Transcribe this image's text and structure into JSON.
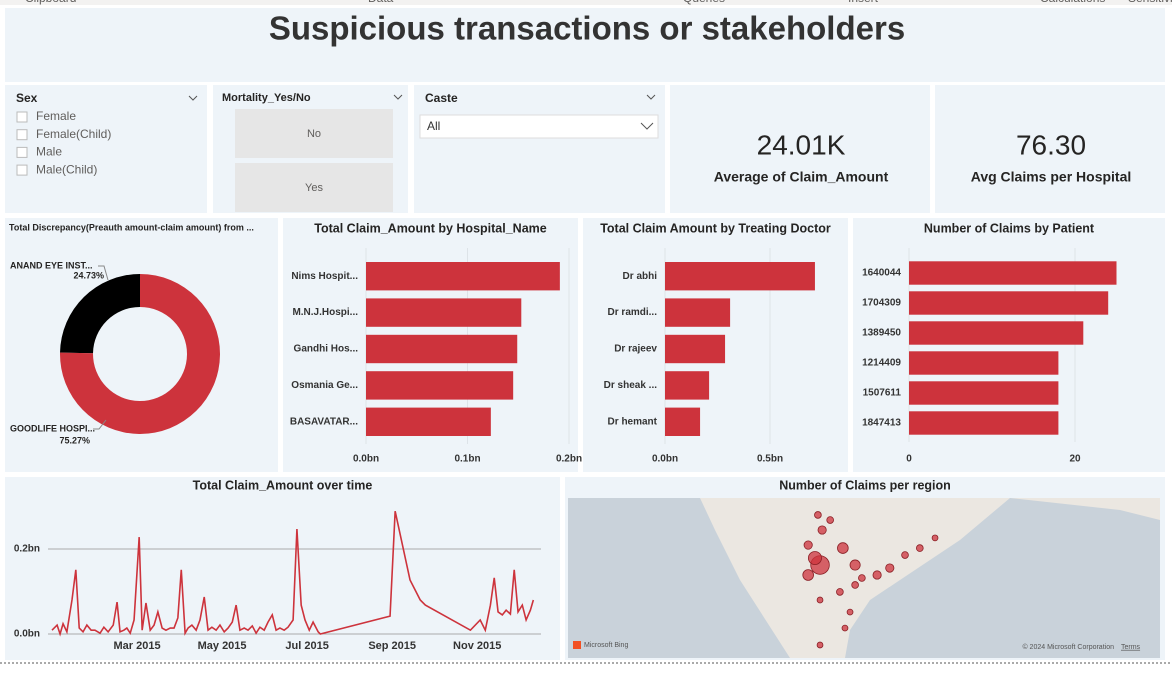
{
  "ribbon": [
    "Clipboard",
    "Data",
    "Queries",
    "Insert",
    "Calculations",
    "Sensitivity"
  ],
  "title": "Suspicious transactions or stakeholders",
  "slicers": [
    {
      "title": "Sex",
      "options": [
        "Female",
        "Female(Child)",
        "Male",
        "Male(Child)"
      ]
    },
    {
      "title": "Mortality_Yes/No",
      "options": [
        "No",
        "Yes"
      ]
    },
    {
      "title": "Caste",
      "selected": "All"
    }
  ],
  "cards": [
    {
      "value": "24.01K",
      "label": "Average of Claim_Amount"
    },
    {
      "value": "76.30",
      "label": "Avg Claims per Hospital"
    }
  ],
  "chart_data": [
    {
      "type": "pie",
      "title": "Total Discrepancy(Preauth amount-claim amount) from ...",
      "categories": [
        "ANAND EYE INST...",
        "GOODLIFE HOSPI..."
      ],
      "values": [
        24.73,
        75.27
      ],
      "value_labels": [
        "24.73%",
        "75.27%"
      ],
      "colors": [
        "#000000",
        "#cd333c"
      ]
    },
    {
      "type": "bar",
      "title": "Total Claim_Amount by Hospital_Name",
      "categories": [
        "Nims Hospit...",
        "M.N.J.Hospi...",
        "Gandhi Hos...",
        "Osmania Ge...",
        "BASAVATAR..."
      ],
      "values": [
        0.191,
        0.153,
        0.149,
        0.145,
        0.123
      ],
      "color": "#cd333c",
      "xlim": [
        0,
        0.2
      ],
      "xticks": [
        {
          "value": 0,
          "label": "0.0bn"
        },
        {
          "value": 0.1,
          "label": "0.1bn"
        },
        {
          "value": 0.2,
          "label": "0.2bn"
        }
      ],
      "grid": true
    },
    {
      "type": "bar",
      "title": "Total Claim Amount by Treating Doctor",
      "categories": [
        "Dr abhi",
        "Dr ramdi...",
        "Dr rajeev",
        "Dr sheak ...",
        "Dr hemant"
      ],
      "values": [
        0.714,
        0.31,
        0.286,
        0.21,
        0.167
      ],
      "color": "#cd333c",
      "xlim": [
        0,
        0.85
      ],
      "xticks": [
        {
          "value": 0,
          "label": "0.0bn"
        },
        {
          "value": 0.5,
          "label": "0.5bn"
        }
      ],
      "grid": true
    },
    {
      "type": "bar",
      "title": "Number of Claims by Patient",
      "categories": [
        "1640044",
        "1704309",
        "1389450",
        "1214409",
        "1507611",
        "1847413"
      ],
      "values": [
        25,
        24,
        21,
        18,
        18,
        18
      ],
      "color": "#cd333c",
      "xlim": [
        0,
        28
      ],
      "xticks": [
        0,
        20
      ],
      "grid": true
    },
    {
      "type": "line",
      "title": "Total Claim_Amount over time",
      "color": "#cd333c",
      "grid": true,
      "x": [
        1,
        1.12,
        1.19,
        1.26,
        1.35,
        1.47,
        1.56,
        1.64,
        1.73,
        1.82,
        1.92,
        2.01,
        2.13,
        2.22,
        2.32,
        2.44,
        2.53,
        2.6,
        2.69,
        2.76,
        2.84,
        2.93,
        3.05,
        3.12,
        3.21,
        3.31,
        3.4,
        3.49,
        3.59,
        3.68,
        3.78,
        3.87,
        3.96,
        4.04,
        4.13,
        4.2,
        4.29,
        4.39,
        4.48,
        4.58,
        4.67,
        4.76,
        4.86,
        4.95,
        5.05,
        5.14,
        5.24,
        5.33,
        5.42,
        5.52,
        5.61,
        5.71,
        5.8,
        5.89,
        5.99,
        6.08,
        6.18,
        6.27,
        6.36,
        6.46,
        6.55,
        6.67,
        6.76,
        6.86,
        6.95,
        7.05,
        7.14,
        7.26,
        7.31,
        8.95,
        9.07,
        9.42,
        9.66,
        9.78,
        10.84,
        11.07,
        11.19,
        11.31,
        11.4,
        11.49,
        11.59,
        11.68,
        11.78,
        11.87,
        11.96,
        12.06,
        12.15,
        12.25,
        12.32
      ],
      "values": [
        0.009,
        0.021,
        0,
        0.024,
        0.005,
        0.08,
        0.151,
        0.014,
        0.005,
        0.021,
        0.009,
        0.009,
        0.002,
        0.016,
        0.005,
        0.021,
        0.075,
        0.005,
        0.009,
        0.014,
        0.002,
        0.033,
        0.228,
        0.009,
        0.073,
        0.009,
        0.021,
        0.052,
        0.014,
        0.009,
        0.014,
        0.014,
        0.038,
        0.151,
        0.002,
        0.014,
        0.021,
        0.009,
        0.033,
        0.087,
        0.009,
        0.016,
        0.009,
        0.021,
        0.005,
        0.014,
        0.028,
        0.068,
        0.009,
        0.014,
        0.009,
        0.019,
        0.002,
        0.016,
        0.009,
        0.028,
        0.045,
        0.009,
        0.014,
        0.009,
        0.016,
        0.033,
        0.247,
        0.068,
        0.033,
        0.009,
        0.028,
        0.005,
        0,
        0.042,
        0.289,
        0.127,
        0.08,
        0.068,
        0.009,
        0.033,
        0.009,
        0.068,
        0.132,
        0.052,
        0.045,
        0.056,
        0.047,
        0.151,
        0.052,
        0.068,
        0.033,
        0.056,
        0.08
      ],
      "xlim": [
        1,
        12.5
      ],
      "xticks": [
        {
          "value": 3,
          "label": "Mar 2015"
        },
        {
          "value": 5,
          "label": "May 2015"
        },
        {
          "value": 7,
          "label": "Jul 2015"
        },
        {
          "value": 9,
          "label": "Sep 2015"
        },
        {
          "value": 11,
          "label": "Nov 2015"
        }
      ],
      "ylim": [
        0,
        0.3
      ],
      "yticks": [
        {
          "value": 0,
          "label": "0.0bn"
        },
        {
          "value": 0.2,
          "label": "0.2bn"
        }
      ]
    },
    {
      "type": "map",
      "title": "Number of Claims per region",
      "color": "#cd333c",
      "attribution": "Microsoft Bing",
      "copyright": "© 2024 Microsoft Corporation",
      "terms": "Terms",
      "lon": [
        79.96,
        79.84,
        80.5,
        79.68,
        80.01,
        79.91,
        80.79,
        80.95,
        81.31,
        81.61,
        81.97,
        82.32,
        82.68,
        80.79,
        80.43,
        79.96,
        80.67,
        80.55,
        79.96,
        79.68,
        80.2
      ],
      "lat": [
        16.94,
        17.31,
        17.84,
        16.41,
        18.8,
        19.6,
        16.94,
        16.25,
        16.41,
        16.78,
        17.47,
        17.84,
        18.38,
        15.88,
        15.51,
        15.08,
        14.44,
        13.59,
        12.69,
        18,
        19.33
      ],
      "values": [
        60,
        30,
        20,
        20,
        12,
        8,
        18,
        8,
        12,
        12,
        8,
        8,
        6,
        8,
        8,
        6,
        6,
        6,
        6,
        12,
        8
      ]
    }
  ]
}
